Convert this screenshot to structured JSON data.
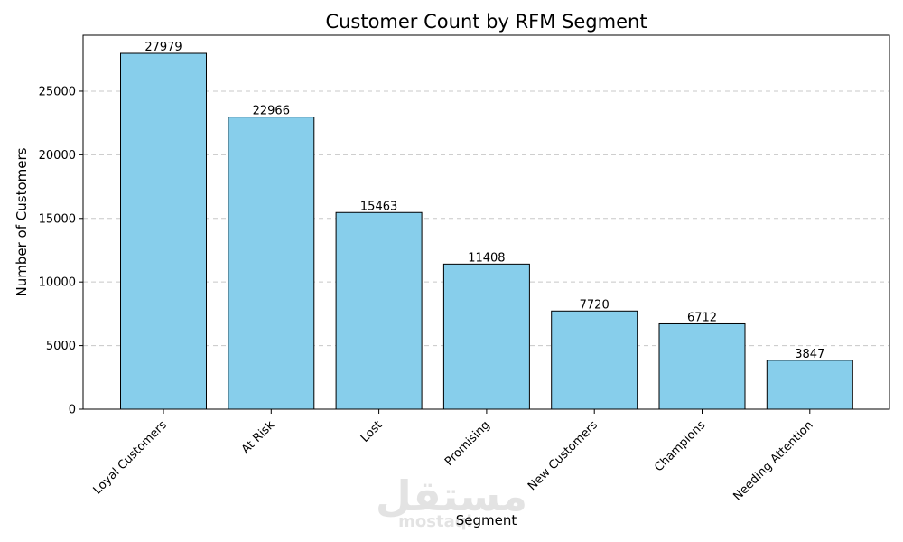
{
  "chart_data": {
    "type": "bar",
    "title": "Customer Count by RFM Segment",
    "xlabel": "Segment",
    "ylabel": "Number of Customers",
    "categories": [
      "Loyal Customers",
      "At Risk",
      "Lost",
      "Promising",
      "New Customers",
      "Champions",
      "Needing Attention"
    ],
    "values": [
      27979,
      22966,
      15463,
      11408,
      7720,
      6712,
      3847
    ],
    "ylim": [
      0,
      29400
    ],
    "yticks": [
      0,
      5000,
      10000,
      15000,
      20000,
      25000
    ],
    "grid": "y-dashed",
    "bar_color": "#87ceeb",
    "edge_color": "#000000"
  },
  "watermark": {
    "arabic": "مستقل",
    "latin": "mostaql"
  }
}
